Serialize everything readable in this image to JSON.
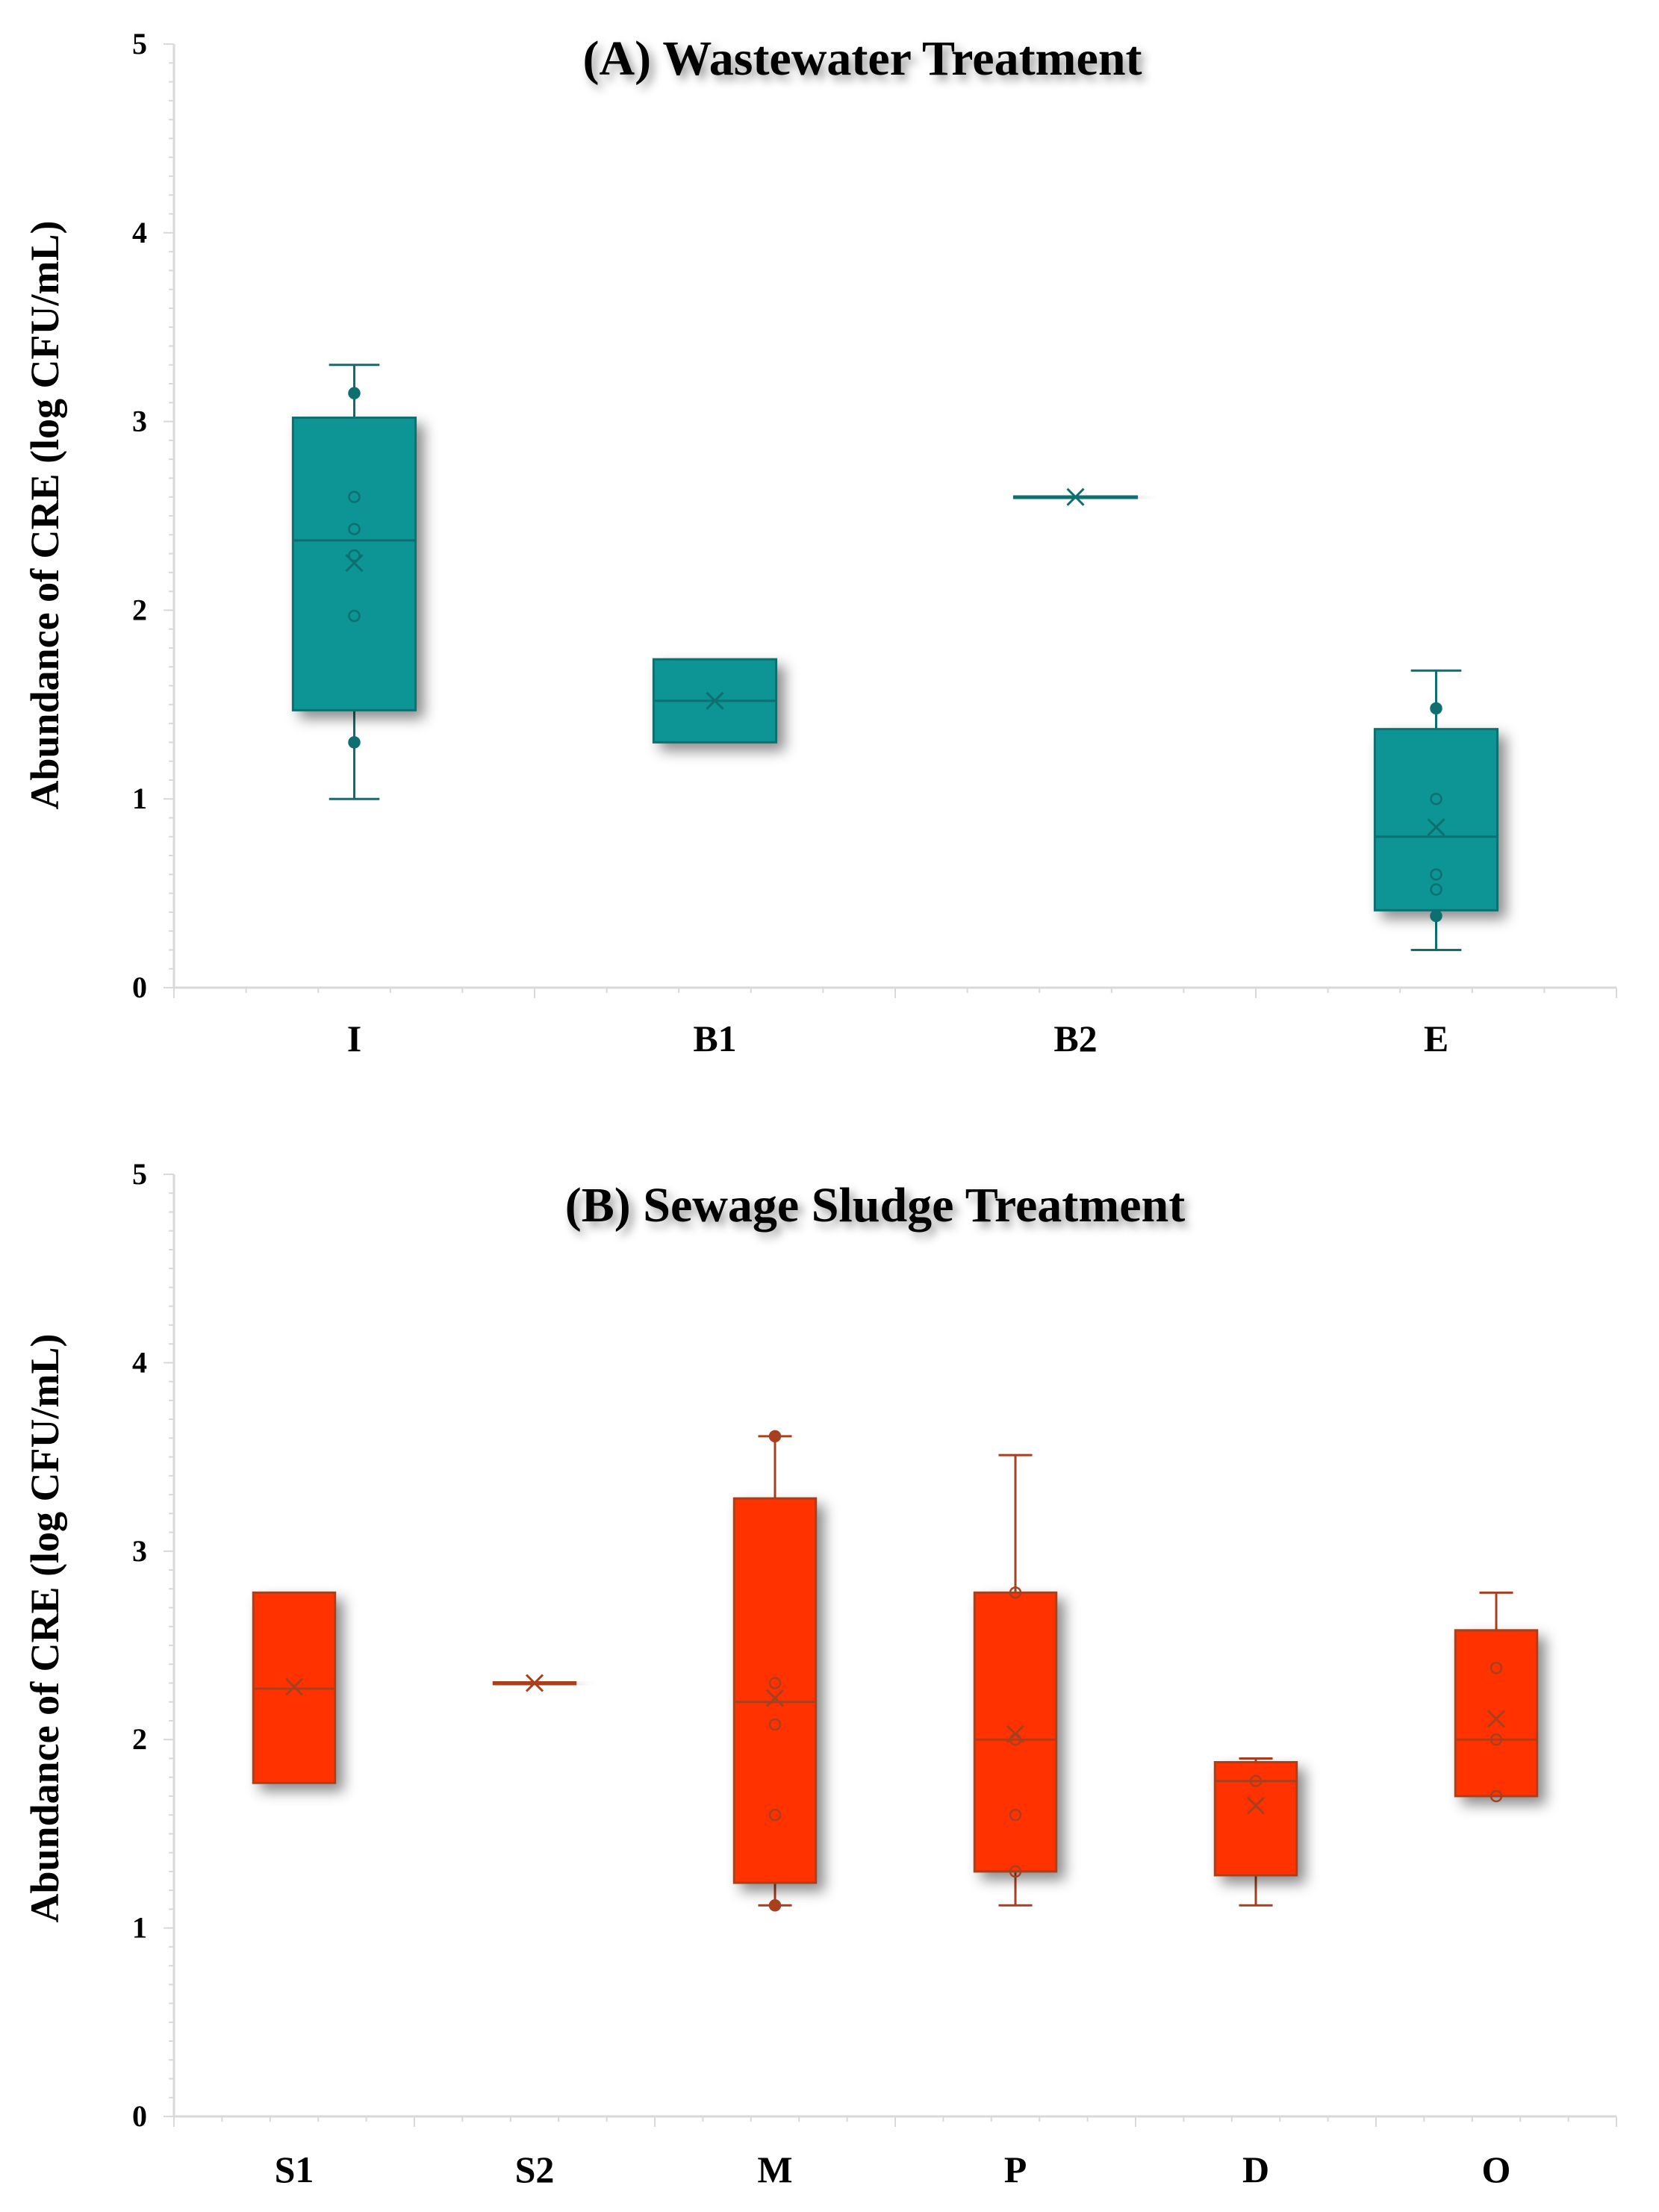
{
  "chart_data": [
    {
      "type": "box",
      "title": "(A) Wastewater Treatment",
      "ylabel": "Abundance of CRE (log CFU/mL)",
      "xlabel": "",
      "ylim": [
        0,
        5
      ],
      "yticks": [
        "0",
        "1",
        "2",
        "3",
        "4",
        "5"
      ],
      "grid": false,
      "color": "#0f9495",
      "edge_color": "#0d6f70",
      "categories": [
        "I",
        "B1",
        "B2",
        "E"
      ],
      "boxes": [
        {
          "name": "I",
          "whisker_low": 1.0,
          "q1": 1.47,
          "median": 2.37,
          "q3": 3.02,
          "whisker_high": 3.3,
          "mean": 2.25,
          "points": [
            1.3,
            1.97,
            2.29,
            2.43,
            2.6,
            3.15
          ]
        },
        {
          "name": "B1",
          "whisker_low": 1.3,
          "q1": 1.3,
          "median": 1.52,
          "q3": 1.74,
          "whisker_high": 1.74,
          "mean": 1.52,
          "points": []
        },
        {
          "name": "B2",
          "whisker_low": 2.6,
          "q1": 2.6,
          "median": 2.6,
          "q3": 2.6,
          "whisker_high": 2.6,
          "mean": 2.6,
          "points": []
        },
        {
          "name": "E",
          "whisker_low": 0.2,
          "q1": 0.41,
          "median": 0.8,
          "q3": 1.37,
          "whisker_high": 1.68,
          "mean": 0.85,
          "points": [
            0.38,
            0.52,
            0.6,
            1.0,
            1.48
          ]
        }
      ]
    },
    {
      "type": "box",
      "title": "(B) Sewage Sludge Treatment",
      "ylabel": "Abundance of CRE (log CFU/mL)",
      "xlabel": "",
      "ylim": [
        0,
        5
      ],
      "yticks": [
        "0",
        "1",
        "2",
        "3",
        "4",
        "5"
      ],
      "grid": false,
      "color": "#ff3300",
      "edge_color": "#a8401f",
      "categories": [
        "S1",
        "S2",
        "M",
        "P",
        "D",
        "O"
      ],
      "boxes": [
        {
          "name": "S1",
          "whisker_low": 1.77,
          "q1": 1.77,
          "median": 2.27,
          "q3": 2.78,
          "whisker_high": 2.78,
          "mean": 2.28,
          "points": []
        },
        {
          "name": "S2",
          "whisker_low": 2.3,
          "q1": 2.3,
          "median": 2.3,
          "q3": 2.3,
          "whisker_high": 2.3,
          "mean": 2.3,
          "points": []
        },
        {
          "name": "M",
          "whisker_low": 1.12,
          "q1": 1.24,
          "median": 2.2,
          "q3": 3.28,
          "whisker_high": 3.61,
          "mean": 2.22,
          "points": [
            1.12,
            1.6,
            2.08,
            2.3,
            3.61
          ]
        },
        {
          "name": "P",
          "whisker_low": 1.12,
          "q1": 1.3,
          "median": 2.0,
          "q3": 2.78,
          "whisker_high": 3.51,
          "mean": 2.03,
          "points": [
            1.3,
            1.6,
            2.0,
            2.78
          ]
        },
        {
          "name": "D",
          "whisker_low": 1.12,
          "q1": 1.28,
          "median": 1.78,
          "q3": 1.88,
          "whisker_high": 1.9,
          "mean": 1.65,
          "points": [
            1.78
          ]
        },
        {
          "name": "O",
          "whisker_low": 1.7,
          "q1": 1.7,
          "median": 2.0,
          "q3": 2.58,
          "whisker_high": 2.78,
          "mean": 2.11,
          "points": [
            1.7,
            2.0,
            2.38
          ]
        }
      ]
    }
  ]
}
